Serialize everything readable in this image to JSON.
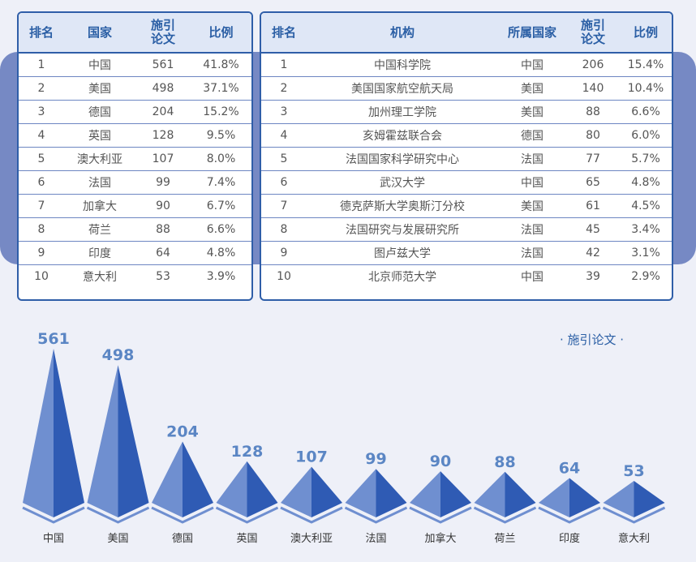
{
  "countries_table": {
    "headers": [
      "排名",
      "国家",
      "施引\n论文",
      "比例"
    ],
    "rows": [
      [
        "1",
        "中国",
        "561",
        "41.8%"
      ],
      [
        "2",
        "美国",
        "498",
        "37.1%"
      ],
      [
        "3",
        "德国",
        "204",
        "15.2%"
      ],
      [
        "4",
        "英国",
        "128",
        "9.5%"
      ],
      [
        "5",
        "澳大利亚",
        "107",
        "8.0%"
      ],
      [
        "6",
        "法国",
        "99",
        "7.4%"
      ],
      [
        "7",
        "加拿大",
        "90",
        "6.7%"
      ],
      [
        "8",
        "荷兰",
        "88",
        "6.6%"
      ],
      [
        "9",
        "印度",
        "64",
        "4.8%"
      ],
      [
        "10",
        "意大利",
        "53",
        "3.9%"
      ]
    ]
  },
  "institutions_table": {
    "headers": [
      "排名",
      "机构",
      "所属国家",
      "施引\n论文",
      "比例"
    ],
    "rows": [
      [
        "1",
        "中国科学院",
        "中国",
        "206",
        "15.4%"
      ],
      [
        "2",
        "美国国家航空航天局",
        "美国",
        "140",
        "10.4%"
      ],
      [
        "3",
        "加州理工学院",
        "美国",
        "88",
        "6.6%"
      ],
      [
        "4",
        "亥姆霍兹联合会",
        "德国",
        "80",
        "6.0%"
      ],
      [
        "5",
        "法国国家科学研究中心",
        "法国",
        "77",
        "5.7%"
      ],
      [
        "6",
        "武汉大学",
        "中国",
        "65",
        "4.8%"
      ],
      [
        "7",
        "德克萨斯大学奥斯汀分校",
        "美国",
        "61",
        "4.5%"
      ],
      [
        "8",
        "法国研究与发展研究所",
        "法国",
        "45",
        "3.4%"
      ],
      [
        "9",
        "图卢兹大学",
        "法国",
        "42",
        "3.1%"
      ],
      [
        "10",
        "北京师范大学",
        "中国",
        "39",
        "2.9%"
      ]
    ]
  },
  "colors": {
    "accent": "#2f5ea8",
    "band": "#7689c4",
    "pyramid_light": "#6f8fd0",
    "pyramid_dark": "#2f5bb4",
    "value_label": "#5b86c4"
  },
  "chart_data": {
    "type": "bar",
    "style": "pyramid",
    "legend": "· 施引论文 ·",
    "legend_position": "top-right",
    "categories": [
      "中国",
      "美国",
      "德国",
      "英国",
      "澳大利亚",
      "法国",
      "加拿大",
      "荷兰",
      "印度",
      "意大利"
    ],
    "values": [
      561,
      498,
      204,
      128,
      107,
      99,
      90,
      88,
      64,
      53
    ],
    "ylim": [
      0,
      561
    ]
  }
}
